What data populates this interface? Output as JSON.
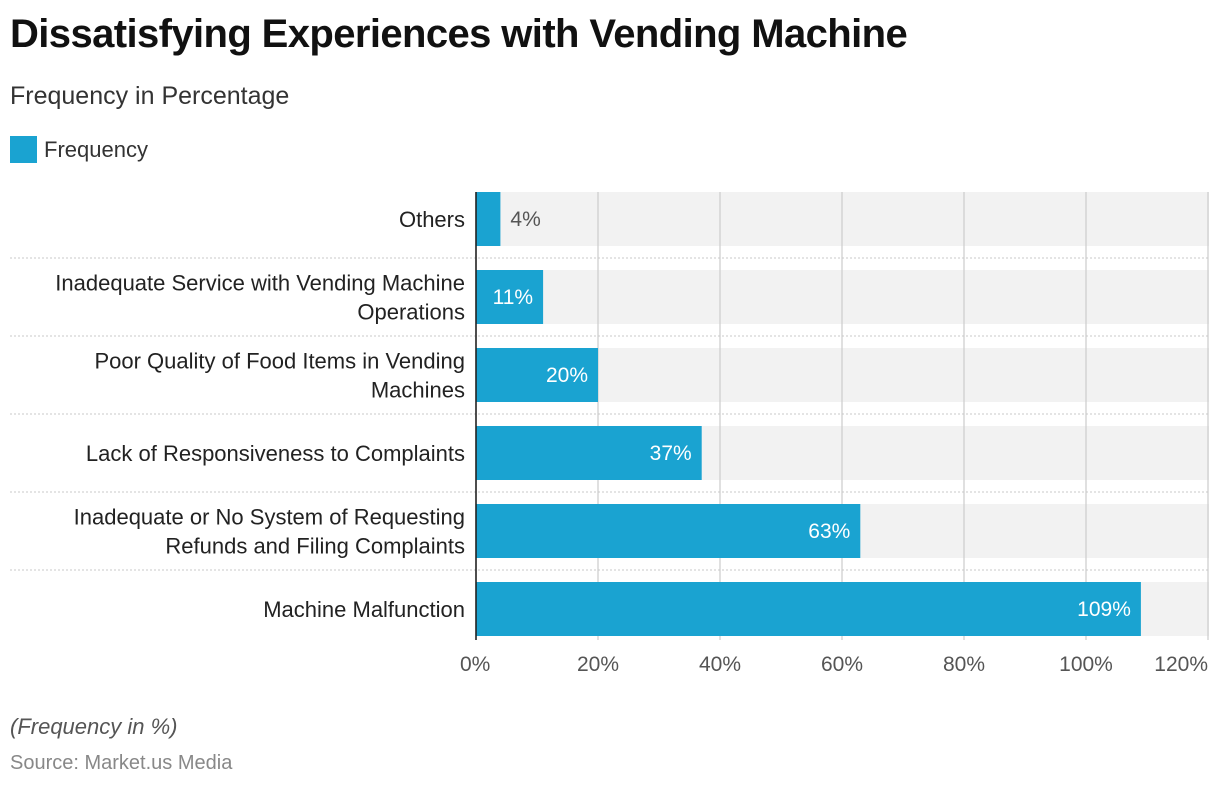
{
  "header": {
    "title": "Dissatisfying Experiences with Vending Machine",
    "subtitle": "Frequency in Percentage"
  },
  "legend": {
    "label": "Frequency",
    "position": "top-left"
  },
  "footer": {
    "note": "(Frequency in %)",
    "source": "Source: Market.us Media"
  },
  "colors": {
    "bar": "#1aa3d1",
    "band": "#f2f2f2",
    "grid": "#cccccc",
    "axis": "#222222",
    "separator": "#c8c8c8",
    "label_inside": "#ffffff",
    "label_outside": "#555555"
  },
  "chart_data": {
    "type": "bar",
    "orientation": "horizontal",
    "title": "Dissatisfying Experiences with Vending Machine",
    "subtitle": "Frequency in Percentage",
    "categories": [
      [
        "Others"
      ],
      [
        "Inadequate Service with Vending Machine",
        "Operations"
      ],
      [
        "Poor Quality of Food Items in Vending",
        "Machines"
      ],
      [
        "Lack of Responsiveness to Complaints"
      ],
      [
        "Inadequate or No System of Requesting",
        "Refunds and Filing Complaints"
      ],
      [
        "Machine Malfunction"
      ]
    ],
    "series": [
      {
        "name": "Frequency",
        "values": [
          4,
          11,
          20,
          37,
          63,
          109
        ],
        "labels": [
          "4%",
          "11%",
          "20%",
          "37%",
          "63%",
          "109%"
        ]
      }
    ],
    "xlim": [
      0,
      120
    ],
    "xticks": [
      0,
      20,
      40,
      60,
      80,
      100,
      120
    ],
    "xtick_labels": [
      "0%",
      "20%",
      "40%",
      "60%",
      "80%",
      "100%",
      "120%"
    ],
    "grid": true,
    "legend": "top-left"
  }
}
